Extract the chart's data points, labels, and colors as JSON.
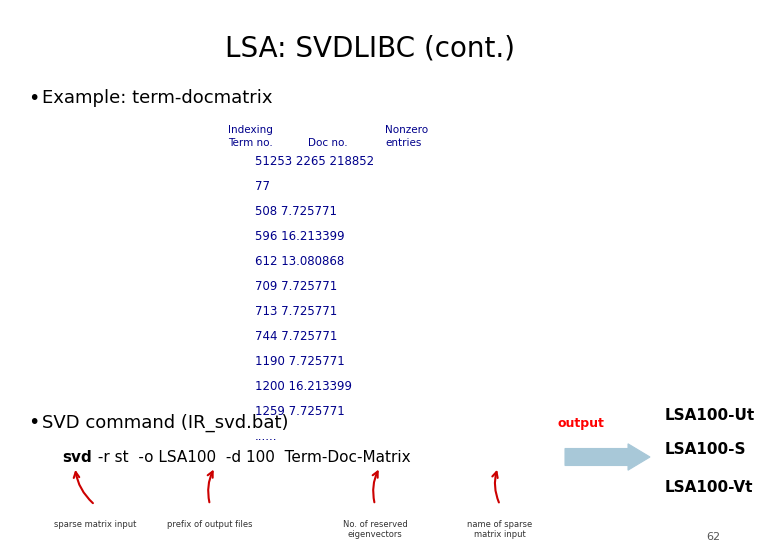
{
  "title": "LSA: SVDLIBC (cont.)",
  "title_fontsize": 20,
  "bg_color": "#ffffff",
  "bullet1": "Example: term-docmatrix",
  "bullet2": "SVD command (IR_svd.bat)",
  "header_col1": "Indexing",
  "header_col1b": "Term no.",
  "header_col2": "Doc no.",
  "header_col3": "Nonzero",
  "header_col3b": "entries",
  "data_lines": [
    "51253 2265 218852",
    "77",
    "508 7.725771",
    "596 16.213399",
    "612 13.080868",
    "709 7.725771",
    "713 7.725771",
    "744 7.725771",
    "1190 7.725771",
    "1200 16.213399",
    "1259 7.725771",
    "......"
  ],
  "header_color": "#00008B",
  "data_color": "#00008B",
  "output_labels": [
    "LSA100-Ut",
    "LSA100-S",
    "LSA100-Vt"
  ],
  "output_text": "output",
  "output_text_color": "#ff0000",
  "lsa_label_color": "#000000",
  "arrow_color": "#a8c8d8",
  "arrow_edge_color": "#555555",
  "ann_texts": [
    "sparse matrix input",
    "prefix of output files",
    "No. of reserved\neigenvectors",
    "name of sparse\nmatrix input"
  ],
  "ann_color": "#333333",
  "red_arrow_color": "#cc0000",
  "page_number": "62"
}
